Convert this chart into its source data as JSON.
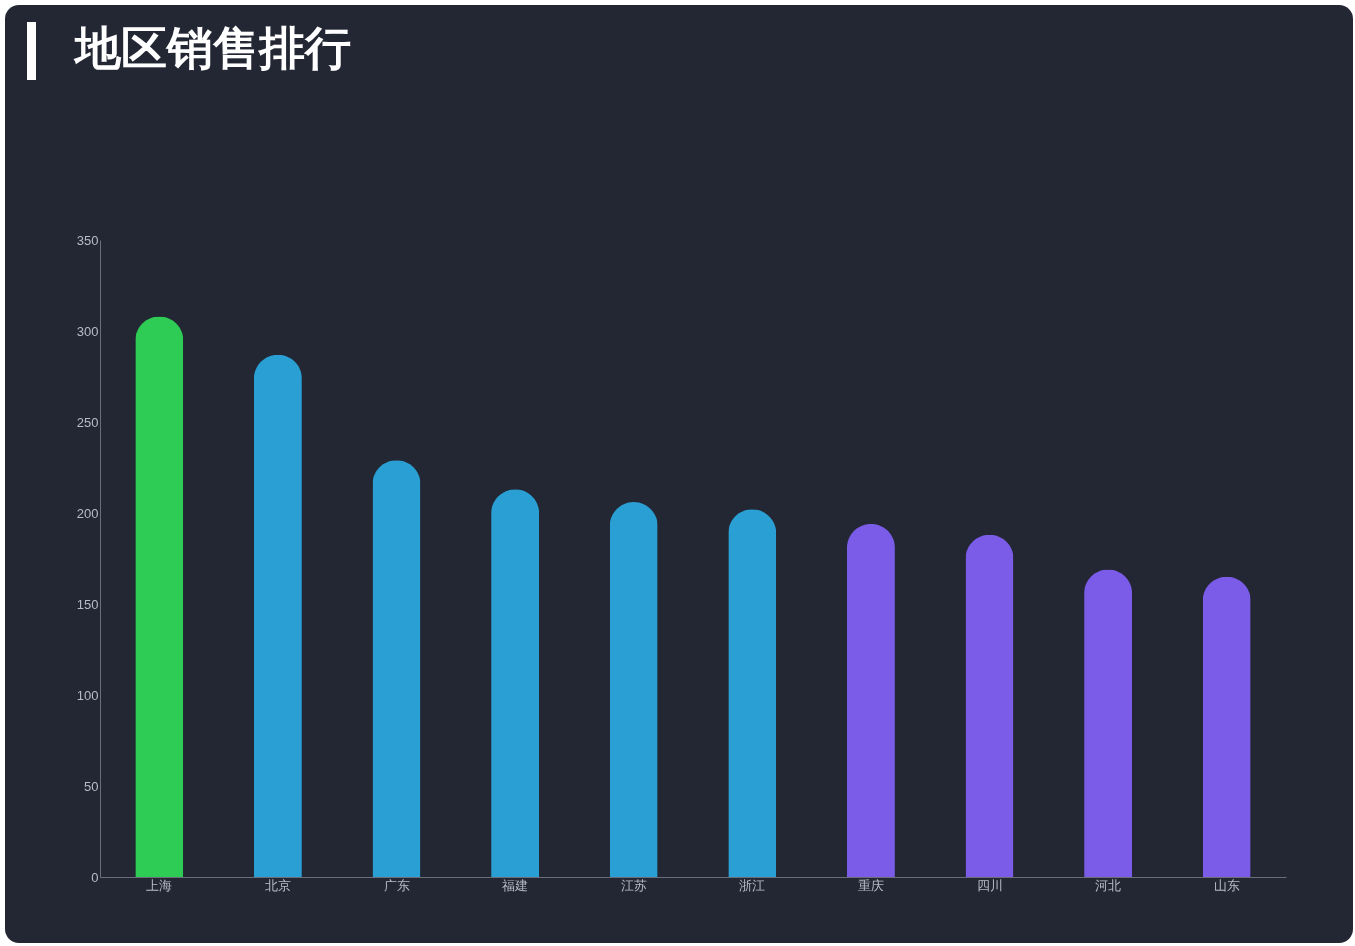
{
  "chart_data": {
    "type": "bar",
    "title": "地区销售排行",
    "categories": [
      "上海",
      "北京",
      "广东",
      "福建",
      "江苏",
      "浙江",
      "重庆",
      "四川",
      "河北",
      "山东"
    ],
    "values": [
      308,
      287,
      229,
      213,
      206,
      202,
      194,
      188,
      169,
      165
    ],
    "colors": [
      "#2ecc55",
      "#2a9fd4",
      "#2a9fd4",
      "#2a9fd4",
      "#2a9fd4",
      "#2a9fd4",
      "#7a5ce8",
      "#7a5ce8",
      "#7a5ce8",
      "#7a5ce8"
    ],
    "ylim": [
      0,
      350
    ],
    "yticks": [
      0,
      50,
      100,
      150,
      200,
      250,
      300,
      350
    ],
    "grid": false
  }
}
